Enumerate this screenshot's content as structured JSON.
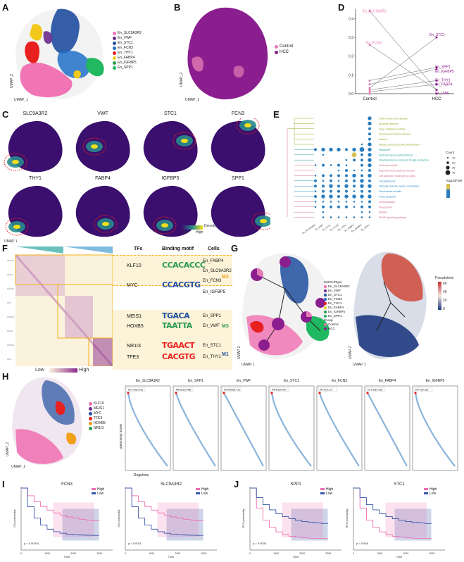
{
  "figure": {
    "panels": [
      "A",
      "B",
      "C",
      "D",
      "E",
      "F",
      "G",
      "H",
      "I",
      "J"
    ],
    "umap_x": "UMAP_1",
    "umap_y": "UMAP_2",
    "umap_x_alt": "UMAP 1",
    "umap_y_alt": "UMAP 2"
  },
  "panel_a": {
    "legend": [
      {
        "label": "En_SLC9A3R2",
        "color": "#f06db0"
      },
      {
        "label": "En_VWF",
        "color": "#6a2a8c"
      },
      {
        "label": "En_STC1",
        "color": "#1f4fa0"
      },
      {
        "label": "En_FCN3",
        "color": "#2070c8"
      },
      {
        "label": "En_THY1",
        "color": "#e82020"
      },
      {
        "label": "En_FABP4",
        "color": "#f2c81a"
      },
      {
        "label": "En_IGFBP5",
        "color": "#22a050"
      },
      {
        "label": "En_SPP1",
        "color": "#20b860"
      }
    ]
  },
  "panel_b": {
    "legend": [
      {
        "label": "Control",
        "color": "#e27ab4"
      },
      {
        "label": "HCC",
        "color": "#8b1e8e"
      }
    ]
  },
  "chart_data": [
    {
      "type": "line",
      "panel": "D",
      "categories": [
        "Control",
        "HCC"
      ],
      "ylim": [
        0,
        0.45
      ],
      "yticks": [
        "0.0",
        "0.1",
        "0.2",
        "0.3",
        "0.4"
      ],
      "series": [
        {
          "name": "En_SLC9A3R2",
          "values": [
            0.44,
            0.02
          ]
        },
        {
          "name": "En_STC1",
          "values": [
            0.03,
            0.3
          ]
        },
        {
          "name": "En_FCN3",
          "values": [
            0.26,
            0.02
          ]
        },
        {
          "name": "En_SPP1",
          "values": [
            0.07,
            0.14
          ]
        },
        {
          "name": "En_IGFBP5",
          "values": [
            0.05,
            0.13
          ]
        },
        {
          "name": "En_THY1",
          "values": [
            0.02,
            0.07
          ]
        },
        {
          "name": "En_FABP4",
          "values": [
            0.01,
            0.05
          ]
        },
        {
          "name": "En_VWF",
          "values": [
            0.0,
            0.0
          ]
        }
      ]
    },
    {
      "type": "line",
      "panel": "I",
      "title": "FCN3",
      "ylabel": "OS probability",
      "xlabel": "Time",
      "xticks": [
        "0",
        "1000",
        "2000",
        "3000"
      ],
      "annotation": "p = 0.00014",
      "series": [
        {
          "name": "High"
        },
        {
          "name": "Low"
        }
      ]
    },
    {
      "type": "line",
      "panel": "I",
      "title": "SLC9A3R2",
      "ylabel": "OS probability",
      "xlabel": "Time",
      "xticks": [
        "0",
        "1000",
        "2000",
        "3000"
      ],
      "annotation": "p = 0.0011",
      "series": [
        {
          "name": "High"
        },
        {
          "name": "Low"
        }
      ]
    },
    {
      "type": "line",
      "panel": "J",
      "title": "SPP1",
      "ylabel": "RFS probability",
      "xlabel": "Time",
      "xticks": [
        "0",
        "1000",
        "2000",
        "3000"
      ],
      "annotation": "p = 0.0035",
      "series": [
        {
          "name": "High"
        },
        {
          "name": "Low"
        }
      ]
    },
    {
      "type": "line",
      "panel": "J",
      "title": "STC1",
      "ylabel": "RFS probability",
      "xlabel": "Time",
      "xticks": [
        "0",
        "1000",
        "2000",
        "3000"
      ],
      "annotation": "p = 0.046",
      "series": [
        {
          "name": "High"
        },
        {
          "name": "Low"
        }
      ]
    }
  ],
  "panel_c": {
    "genes": [
      "SLC9A3R2",
      "VWF",
      "STC1",
      "FCN3",
      "THY1",
      "FABP4",
      "IGFBP5",
      "SPP1"
    ],
    "scale_low": "Low",
    "scale_high": "High",
    "scale_title": "Density"
  },
  "panel_e": {
    "terms": [
      {
        "label": "Graft-versus-host disease",
        "color": "#9aaa2c"
      },
      {
        "label": "Allograft rejection",
        "color": "#9aaa2c"
      },
      {
        "label": "Type I diabetes mellitus",
        "color": "#9aaa2c"
      },
      {
        "label": "Autoimmune thyroid disease",
        "color": "#9aaa2c"
      },
      {
        "label": "Asthma",
        "color": "#9aaa2c"
      },
      {
        "label": "Antigen processing and presentation",
        "color": "#9aaa2c"
      },
      {
        "label": "Ribosome",
        "color": "#2aa5a0"
      },
      {
        "label": "Systemic lupus erythematosus",
        "color": "#2aa5a0"
      },
      {
        "label": "Intestinal immune network for IgA production",
        "color": "#2aa5a0"
      },
      {
        "label": "Viral myocarditis",
        "color": "#d96a8a"
      },
      {
        "label": "Staphylococcus aureus infection",
        "color": "#d96a8a"
      },
      {
        "label": "Cell adhesion molecules (CAMs)",
        "color": "#d96a8a"
      },
      {
        "label": "Toxoplasmosis",
        "color": "#2a8ec8"
      },
      {
        "label": "Vascular smooth muscle contraction",
        "color": "#2a8ec8"
      },
      {
        "label": "Rheumatoid arthritis",
        "color": "#2a8ec8"
      },
      {
        "label": "Focal adhesion",
        "color": "#2a8ec8"
      },
      {
        "label": "Leishmaniasis",
        "color": "#d96a8a"
      },
      {
        "label": "Phagosome",
        "color": "#d96a8a"
      },
      {
        "label": "Malaria",
        "color": "#d96a8a"
      },
      {
        "label": "PPAR signaling pathway",
        "color": "#d96a8a"
      }
    ],
    "columns": [
      "En_SLC9A3R2",
      "En_VWF",
      "En_STC1",
      "En_FCN3",
      "En_THY1",
      "En_FABP4",
      "En_IGFBP5",
      "En_SPP1"
    ],
    "count_title": "Count",
    "count_values": [
      "10",
      "20",
      "30",
      "40"
    ],
    "fdr_title": "-log10(FDR)"
  },
  "panel_f": {
    "col_tfs": "TFs",
    "col_motif": "Binding motif",
    "col_cells": "Cells",
    "rows": [
      {
        "tf": "KLF10",
        "motif": "CCACACCC",
        "cell": "En_FABP4"
      },
      {
        "tf": "",
        "motif": "",
        "cell": "En_SLC9A3R2"
      },
      {
        "tf": "MYC",
        "motif": "CCACGTG",
        "cell": "En_FCN3"
      },
      {
        "tf": "",
        "motif": "",
        "cell": "En_IGFBP5"
      },
      {
        "tf": "MEIS1",
        "motif": "TGACA",
        "cell": "En_SPP1"
      },
      {
        "tf": "HOXB5",
        "motif": "TAATTA",
        "cell": "En_VWF"
      },
      {
        "tf": "NR1I3",
        "motif": "TGAACT",
        "cell": "En_STC1"
      },
      {
        "tf": "TFE3",
        "motif": "CACGTG",
        "cell": "En_THY1"
      }
    ],
    "modules": [
      "M2",
      "M3",
      "M1"
    ],
    "scale_low": "Low",
    "scale_high": "High"
  },
  "panel_g": {
    "subcell_title": "SubCellType",
    "subcell": [
      "En_SLC9A3R2",
      "En_VWF",
      "En_STC1",
      "En_FCN3",
      "En_THY1",
      "En_FABP4",
      "En_IGFBP5",
      "En_SPP1"
    ],
    "group_title": "Group",
    "groups": [
      "Control",
      "HCC"
    ],
    "pseudotime_title": "Pseudotime",
    "pseudotime_ticks": [
      "60",
      "40",
      "20",
      "0"
    ]
  },
  "panel_h": {
    "legend": [
      {
        "label": "KLF10",
        "color": "#f06db0"
      },
      {
        "label": "MEIS1",
        "color": "#7a2a8c"
      },
      {
        "label": "MYC",
        "color": "#1f4fa0"
      },
      {
        "label": "TFE3",
        "color": "#e82020"
      },
      {
        "label": "HOXB5",
        "color": "#f2a01a"
      },
      {
        "label": "NR1I3",
        "color": "#2aa050"
      }
    ],
    "ylabel": "Specificity score",
    "xlabel": "Regulons",
    "plots": [
      {
        "title": "En_SLC9A3R2",
        "tag": "KLF10(0.51)"
      },
      {
        "title": "En_SPP1",
        "tag": "MEIS1(0.48)"
      },
      {
        "title": "En_VWF",
        "tag": "HOXB5(0.41)"
      },
      {
        "title": "En_STC1",
        "tag": "NR1I3(0.54)"
      },
      {
        "title": "En_FCN3",
        "tag": "MYC(0.27)"
      },
      {
        "title": "En_FABP4",
        "tag": "KLF10(0.35)"
      },
      {
        "title": "En_IGFBP5",
        "tag": "MYC(0.30)"
      }
    ]
  },
  "km_legend": {
    "high": "High",
    "low": "Low",
    "high_color": "#f06db0",
    "low_color": "#3a58a8"
  }
}
